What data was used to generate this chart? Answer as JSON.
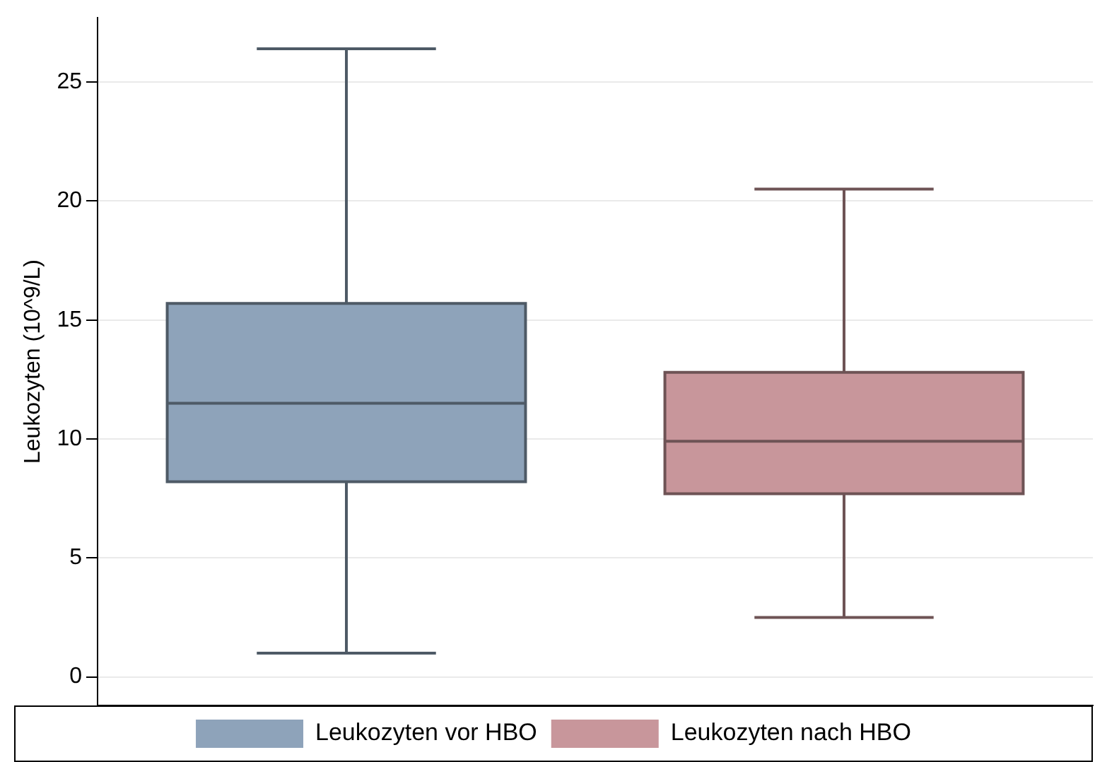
{
  "chart_data": {
    "type": "box",
    "ylabel": "Leukozyten (10^9/L)",
    "categories": [
      null,
      null
    ],
    "ylim": [
      -1.2,
      27.7
    ],
    "yticks": [
      0,
      5,
      10,
      15,
      20,
      25
    ],
    "grid": "y",
    "legend": "bottom",
    "series": [
      {
        "name": "Leukozyten vor HBO",
        "color": "#8ea3ba",
        "boxes": [
          {
            "low": 1.0,
            "q1": 8.2,
            "median": 11.5,
            "q3": 15.7,
            "high": 26.4
          },
          null
        ]
      },
      {
        "name": "Leukozyten nach HBO",
        "color": "#c8969b",
        "boxes": [
          null,
          {
            "low": 2.5,
            "q1": 7.7,
            "median": 9.9,
            "q3": 12.8,
            "high": 20.5
          }
        ]
      }
    ]
  }
}
